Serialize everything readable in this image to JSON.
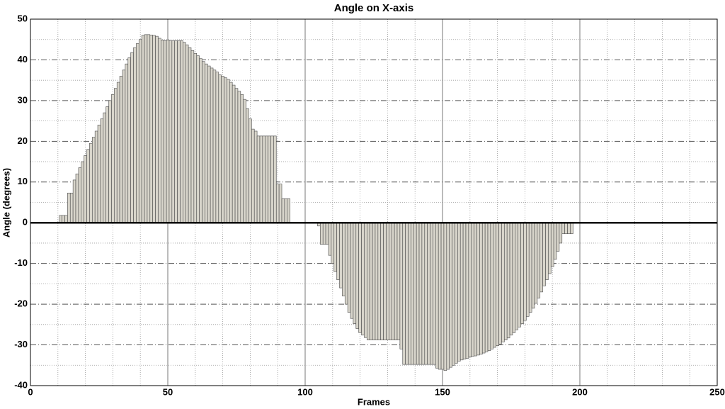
{
  "chart_data": {
    "type": "bar",
    "title": "Angle on X-axis",
    "x_label": "Frames",
    "y_label": "Angle (degrees)",
    "x": [
      11,
      12,
      13,
      14,
      15,
      16,
      17,
      18,
      19,
      20,
      21,
      22,
      23,
      24,
      25,
      26,
      27,
      28,
      29,
      30,
      31,
      32,
      33,
      34,
      35,
      36,
      37,
      38,
      39,
      40,
      41,
      42,
      43,
      44,
      45,
      46,
      47,
      48,
      49,
      50,
      51,
      52,
      53,
      54,
      55,
      56,
      57,
      58,
      59,
      60,
      61,
      62,
      63,
      64,
      65,
      66,
      67,
      68,
      69,
      70,
      71,
      72,
      73,
      74,
      75,
      76,
      77,
      78,
      79,
      80,
      81,
      82,
      83,
      84,
      85,
      86,
      87,
      88,
      89,
      90,
      91,
      92,
      93,
      94,
      105,
      106,
      107,
      108,
      109,
      110,
      111,
      112,
      113,
      114,
      115,
      116,
      117,
      118,
      119,
      120,
      121,
      122,
      123,
      124,
      125,
      126,
      127,
      128,
      129,
      130,
      131,
      132,
      133,
      134,
      135,
      136,
      137,
      138,
      139,
      140,
      141,
      142,
      143,
      144,
      145,
      146,
      147,
      148,
      149,
      150,
      151,
      152,
      153,
      154,
      155,
      156,
      157,
      158,
      159,
      160,
      161,
      162,
      163,
      164,
      165,
      166,
      167,
      168,
      169,
      170,
      171,
      172,
      173,
      174,
      175,
      176,
      177,
      178,
      179,
      180,
      181,
      182,
      183,
      184,
      185,
      186,
      187,
      188,
      189,
      190,
      191,
      192,
      193,
      194,
      195,
      196,
      197
    ],
    "values": [
      1.8,
      1.8,
      1.8,
      7.3,
      7.3,
      10.5,
      12,
      13.5,
      15,
      16.5,
      18,
      19.5,
      21,
      22.5,
      24,
      25.5,
      27,
      28.5,
      30,
      31.5,
      33,
      34.5,
      36,
      37.5,
      39,
      40.5,
      41.8,
      43,
      44,
      45,
      46,
      46.2,
      46.2,
      46.1,
      46,
      45.8,
      45.3,
      44.9,
      44.7,
      44.9,
      44.7,
      44.7,
      44.7,
      44.7,
      44.7,
      44.3,
      43.7,
      43,
      42.3,
      41.6,
      41,
      40.3,
      39.6,
      39,
      38.5,
      38,
      37.5,
      37,
      36.3,
      36,
      35.6,
      35.2,
      34.5,
      33.8,
      33,
      32.3,
      31.5,
      30.3,
      28,
      25.5,
      23,
      22.5,
      21.3,
      21.3,
      21.3,
      21.3,
      21.3,
      21.3,
      21.3,
      9.5,
      9.5,
      5.9,
      5.9,
      5.9,
      -0.8,
      -5.3,
      -5.3,
      -5.3,
      -8,
      -10,
      -12,
      -14,
      -16,
      -18,
      -20,
      -22,
      -23.5,
      -24.8,
      -26,
      -27,
      -27.6,
      -28.2,
      -28.8,
      -28.8,
      -28.8,
      -28.8,
      -28.8,
      -28.8,
      -28.8,
      -28.8,
      -28.8,
      -28.8,
      -28.8,
      -28.8,
      -31,
      -34.8,
      -34.8,
      -34.8,
      -34.8,
      -34.8,
      -34.8,
      -34.8,
      -34.8,
      -34.8,
      -34.8,
      -34.8,
      -34.8,
      -35.7,
      -36,
      -36,
      -36.3,
      -36,
      -35.5,
      -35,
      -34.5,
      -34,
      -33.7,
      -33.5,
      -33.3,
      -33,
      -32.8,
      -32.7,
      -32.5,
      -32.3,
      -32,
      -31.7,
      -31.4,
      -31,
      -30.6,
      -30.2,
      -29.8,
      -29.3,
      -28.8,
      -28.3,
      -27.6,
      -27,
      -26.3,
      -25.6,
      -24.8,
      -24,
      -23,
      -22,
      -21,
      -19.8,
      -18.5,
      -17,
      -15.5,
      -14,
      -12.5,
      -10.8,
      -9,
      -7,
      -5,
      -2.7,
      -2.7,
      -2.7,
      -2.7
    ],
    "color": "#d8d5cb",
    "edge_color": "#4a4a4a",
    "xlim": [
      0,
      250
    ],
    "xticks": [
      0,
      50,
      100,
      150,
      200,
      250
    ],
    "ylim": [
      -40,
      50
    ],
    "yticks": [
      -40,
      -30,
      -20,
      -10,
      0,
      10,
      20,
      30,
      40,
      50
    ],
    "grid": true
  }
}
